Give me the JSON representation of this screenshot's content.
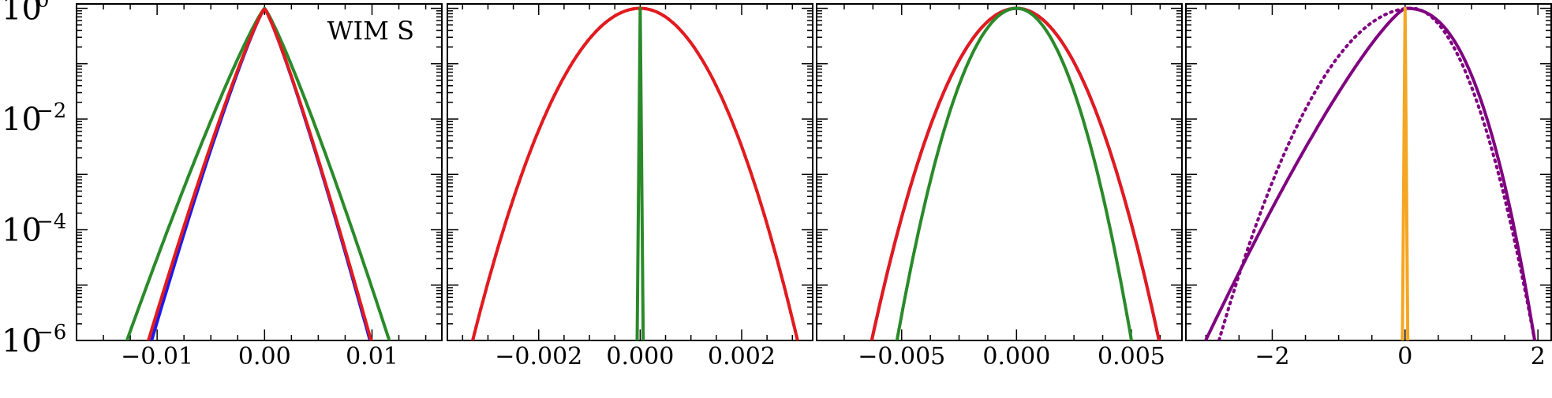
{
  "figure": {
    "annotation": "WIM S",
    "y_tick_labels": [
      {
        "base": "10",
        "exp": "0",
        "value": 1
      },
      {
        "base": "10",
        "exp": "−2",
        "value": 0.01
      },
      {
        "base": "10",
        "exp": "−4",
        "value": 0.0001
      },
      {
        "base": "10",
        "exp": "−6",
        "value": 1e-06
      }
    ]
  },
  "chart_data": [
    {
      "type": "line",
      "yscale": "log",
      "ylim": [
        1e-06,
        1.2
      ],
      "xlim": [
        -0.0175,
        0.0165
      ],
      "xticks": [
        -0.01,
        0.0,
        0.01
      ],
      "xtick_labels": [
        "−0.01",
        "0.00",
        "0.01"
      ],
      "annotation": "WIM S",
      "series": [
        {
          "color": "#1a1aee",
          "style": "solid",
          "shape": "laplace",
          "peak": 1.0,
          "x": [
            -0.0105,
            0.0098
          ]
        },
        {
          "color": "#2a8a2a",
          "style": "solid",
          "shape": "laplace",
          "peak": 1.0,
          "x": [
            -0.0128,
            0.0116
          ]
        },
        {
          "color": "#e41a1c",
          "style": "solid",
          "shape": "laplace",
          "peak": 1.0,
          "x": [
            -0.0108,
            0.0099
          ]
        }
      ]
    },
    {
      "type": "line",
      "yscale": "log",
      "ylim": [
        1e-06,
        1.2
      ],
      "xlim": [
        -0.0038,
        0.0034
      ],
      "xticks": [
        -0.002,
        0.0,
        0.002
      ],
      "xtick_labels": [
        "−0.002",
        "0.000",
        "0.002"
      ],
      "series": [
        {
          "color": "#1a1aee",
          "style": "dotted",
          "shape": "gauss",
          "peak": 1.0,
          "x": [
            -0.0033,
            0.0031
          ]
        },
        {
          "color": "#e41a1c",
          "style": "solid",
          "shape": "gauss",
          "peak": 1.0,
          "x": [
            -0.0033,
            0.0031
          ]
        },
        {
          "color": "#2a8a2a",
          "style": "solid",
          "shape": "spike",
          "peak": 1.0,
          "x": [
            -3e-05,
            3e-05
          ]
        }
      ]
    },
    {
      "type": "line",
      "yscale": "log",
      "ylim": [
        1e-06,
        1.2
      ],
      "xlim": [
        -0.0087,
        0.0072
      ],
      "xticks": [
        -0.005,
        0.0,
        0.005
      ],
      "xtick_labels": [
        "−0.005",
        "0.000",
        "0.005"
      ],
      "series": [
        {
          "color": "#1a1aee",
          "style": "solid",
          "shape": "gauss",
          "peak": 1.0,
          "x": [
            -0.0063,
            0.0062
          ]
        },
        {
          "color": "#e41a1c",
          "style": "solid",
          "shape": "gauss",
          "peak": 1.0,
          "x": [
            -0.0063,
            0.0062
          ]
        },
        {
          "color": "#2a8a2a",
          "style": "solid",
          "shape": "gauss",
          "peak": 1.0,
          "x": [
            -0.0052,
            0.005
          ]
        }
      ]
    },
    {
      "type": "line",
      "yscale": "log",
      "ylim": [
        1e-06,
        1.2
      ],
      "xlim": [
        -3.3,
        2.2
      ],
      "xticks": [
        -2,
        0,
        2
      ],
      "xtick_labels": [
        "−2",
        "0",
        "2"
      ],
      "series": [
        {
          "color": "#800080",
          "style": "solid",
          "shape": "skew",
          "peak": 1.0,
          "x": [
            -3.0,
            1.95
          ]
        },
        {
          "color": "#800080",
          "style": "dotted",
          "shape": "gauss-shift",
          "peak": 1.0,
          "x": [
            -2.8,
            1.95
          ]
        },
        {
          "color": "#f5a623",
          "style": "solid",
          "shape": "spike",
          "peak": 1.0,
          "x": [
            -0.02,
            0.02
          ]
        }
      ]
    }
  ]
}
